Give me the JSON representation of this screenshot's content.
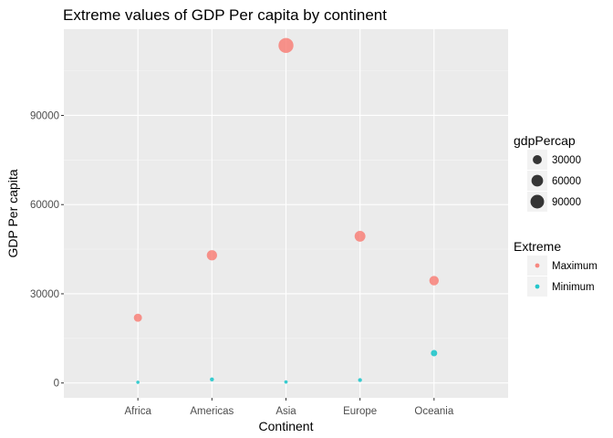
{
  "chart_data": {
    "type": "scatter",
    "title": "Extreme values of GDP Per capita by continent",
    "xlabel": "Continent",
    "ylabel": "GDP Per capita",
    "categories": [
      "Africa",
      "Americas",
      "Asia",
      "Europe",
      "Oceania"
    ],
    "ylim": [
      -5000,
      119000
    ],
    "yticks": [
      0,
      30000,
      60000,
      90000
    ],
    "ytick_labels": [
      "0",
      "30000",
      "60000",
      "90000"
    ],
    "grid": true,
    "series": [
      {
        "name": "Maximum",
        "color": "#F8766D",
        "values": [
          21951,
          42952,
          113523,
          49357,
          34435
        ]
      },
      {
        "name": "Minimum",
        "color": "#00BFC4",
        "values": [
          241,
          1202,
          331,
          974,
          10040
        ]
      }
    ],
    "legend": {
      "placement": "right",
      "size_title": "gdpPercap",
      "size_values": [
        30000,
        60000,
        90000
      ],
      "size_labels": [
        "30000",
        "60000",
        "90000"
      ],
      "color_title": "Extreme",
      "color_labels": [
        "Maximum",
        "Minimum"
      ]
    }
  }
}
